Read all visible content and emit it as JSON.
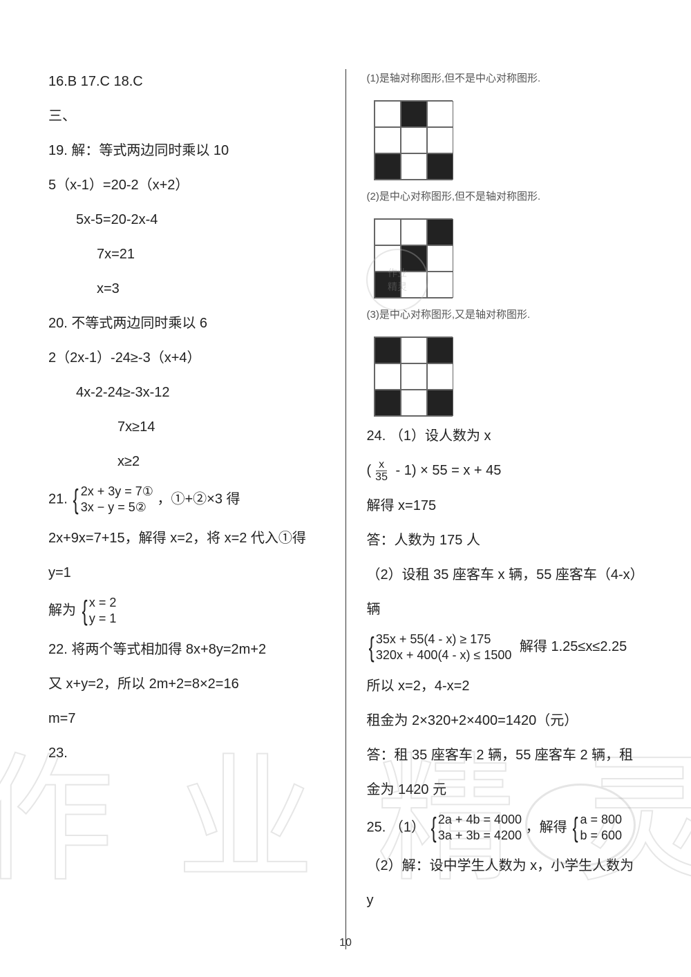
{
  "page_number": "10",
  "left": {
    "l1": "16.B    17.C    18.C",
    "l2": "三、",
    "l3": "19.  解：等式两边同时乘以 10",
    "l4": "5（x-1）=20-2（x+2）",
    "l5": "5x-5=20-2x-4",
    "l6": "7x=21",
    "l7": "x=3",
    "l8": "20.  不等式两边同时乘以 6",
    "l9": "2（2x-1）-24≥-3（x+4）",
    "l10": "4x-2-24≥-3x-12",
    "l11": "7x≥14",
    "l12": "x≥2",
    "p21_prefix": "21.  ",
    "p21_eq1": "2x + 3y = 7①",
    "p21_eq2": "3x − y = 5②",
    "p21_suffix": "，①+②×3 得",
    "l14": "2x+9x=7+15，解得 x=2，将 x=2 代入①得",
    "l15": "y=1",
    "sol_prefix": "解为",
    "sol_eq1": "x = 2",
    "sol_eq2": "y = 1",
    "l17": "22.  将两个等式相加得 8x+8y=2m+2",
    "l18": "又 x+y=2，所以 2m+2=8×2=16",
    "l19": "m=7",
    "l20": "23."
  },
  "right": {
    "cap1": "(1)是轴对称图形,但不是中心对称图形.",
    "cap2": "(2)是中心对称图形,但不是轴对称图形.",
    "cap3": "(3)是中心对称图形,又是轴对称图形.",
    "l4": "24.  （1）设人数为 x",
    "frac_num": "x",
    "frac_den": "35",
    "eq24": " - 1) × 55 = x + 45",
    "l6": "解得 x=175",
    "l7": "答：人数为 175 人",
    "l8": "（2）设租 35 座客车 x 辆，55 座客车（4-x）",
    "l9": "辆",
    "ineq1": "35x + 55(4 - x) ≥ 175",
    "ineq2": "320x + 400(4 - x) ≤ 1500",
    "ineq_suffix": "解得 1.25≤x≤2.25",
    "l11": "所以 x=2，4-x=2",
    "l12": "租金为 2×320+2×400=1420（元）",
    "l13": "答：租 35 座客车 2 辆，55 座客车 2 辆，租",
    "l14": "金为 1420 元",
    "p25_prefix": "25.  （1）",
    "p25_eq1": "2a + 4b = 4000",
    "p25_eq2": "3a + 3b = 4200",
    "p25_mid": "，解得",
    "p25_sol1": "a = 800",
    "p25_sol2": "b = 600",
    "l16": "（2）解：设中学生人数为 x，小学生人数为",
    "l17": "y"
  },
  "grids": {
    "g1": [
      0,
      1,
      0,
      0,
      0,
      0,
      1,
      0,
      1
    ],
    "g2": [
      0,
      0,
      1,
      0,
      1,
      0,
      1,
      0,
      0
    ],
    "g3": [
      1,
      0,
      1,
      0,
      0,
      0,
      1,
      0,
      1
    ]
  },
  "watermark": [
    "作",
    "业",
    "精",
    "灵"
  ],
  "stamp_text": "作业\n精灵",
  "colors": {
    "text": "#222222",
    "small_text": "#555555",
    "border": "#666666",
    "black_cell": "#222222",
    "background": "#ffffff"
  },
  "fonts": {
    "body_pt": 20,
    "small_pt": 15
  }
}
